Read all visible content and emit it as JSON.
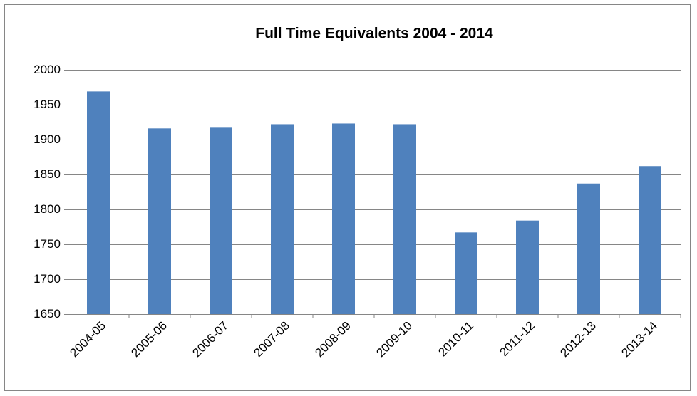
{
  "chart_data": {
    "type": "bar",
    "title": "Full Time Equivalents 2004 - 2014",
    "categories": [
      "2004-05",
      "2005-06",
      "2006-07",
      "2007-08",
      "2008-09",
      "2009-10",
      "2010-11",
      "2011-12",
      "2012-13",
      "2013-14"
    ],
    "values": [
      1969,
      1916,
      1917,
      1922,
      1923,
      1922,
      1767,
      1784,
      1837,
      1862
    ],
    "color": "#4f81bd",
    "ylim": [
      1650,
      2000
    ],
    "yticks": [
      1650,
      1700,
      1750,
      1800,
      1850,
      1900,
      1950,
      2000
    ],
    "grid": true
  }
}
